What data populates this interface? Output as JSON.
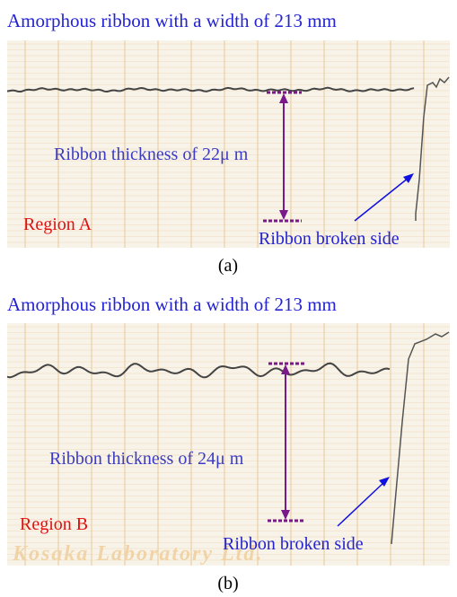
{
  "panels": [
    {
      "title": "Amorphous ribbon with a width of 213 mm",
      "thickness_label": "Ribbon thickness of 22μ m",
      "region_label": "Region A",
      "broken_side_label": "Ribbon broken side",
      "caption": "(a)"
    },
    {
      "title": "Amorphous ribbon with a width of 213 mm",
      "thickness_label": "Ribbon thickness of 24μ m",
      "region_label": "Region B",
      "broken_side_label": "Ribbon broken side",
      "watermark": "Kosaka Laboratory Ltd.",
      "caption": "(b)"
    }
  ]
}
